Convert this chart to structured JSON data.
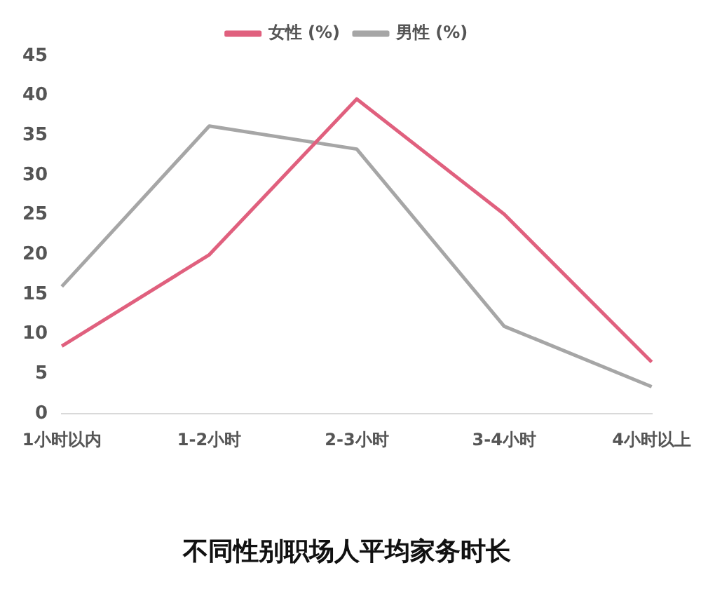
{
  "chart_data": {
    "type": "line",
    "title": "不同性别职场人平均家务时长",
    "categories": [
      "1小时以内",
      "1-2小时",
      "2-3小时",
      "3-4小时",
      "4小时以上"
    ],
    "series": [
      {
        "name": "女性 (%)",
        "color": "#e0607e",
        "values": [
          8.5,
          20,
          39.6,
          25.1,
          6.5
        ]
      },
      {
        "name": "男性 (%)",
        "color": "#a6a6a6",
        "values": [
          16,
          36.2,
          33.3,
          11,
          3.4
        ]
      }
    ],
    "ylim": [
      0,
      45
    ],
    "yticks": [
      0,
      5,
      10,
      15,
      20,
      25,
      30,
      35,
      40,
      45
    ],
    "grid": false,
    "legend": "top",
    "marker": "none",
    "line_style": "solid"
  }
}
